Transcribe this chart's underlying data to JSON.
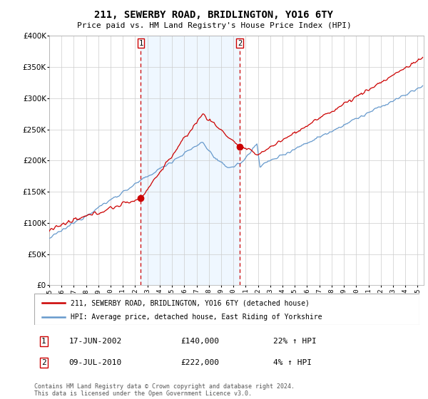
{
  "title": "211, SEWERBY ROAD, BRIDLINGTON, YO16 6TY",
  "subtitle": "Price paid vs. HM Land Registry's House Price Index (HPI)",
  "legend_line1": "211, SEWERBY ROAD, BRIDLINGTON, YO16 6TY (detached house)",
  "legend_line2": "HPI: Average price, detached house, East Riding of Yorkshire",
  "sale1_date": "17-JUN-2002",
  "sale1_price": 140000,
  "sale1_hpi": "22% ↑ HPI",
  "sale2_date": "09-JUL-2010",
  "sale2_price": 222000,
  "sale2_hpi": "4% ↑ HPI",
  "footnote": "Contains HM Land Registry data © Crown copyright and database right 2024.\nThis data is licensed under the Open Government Licence v3.0.",
  "red_color": "#cc0000",
  "blue_color": "#6699cc",
  "bg_color": "#ddeeff",
  "grid_color": "#cccccc",
  "sale1_x": 2002.46,
  "sale2_x": 2010.52,
  "ylim_max": 400000,
  "xlim_start": 1995.0,
  "xlim_end": 2025.5
}
